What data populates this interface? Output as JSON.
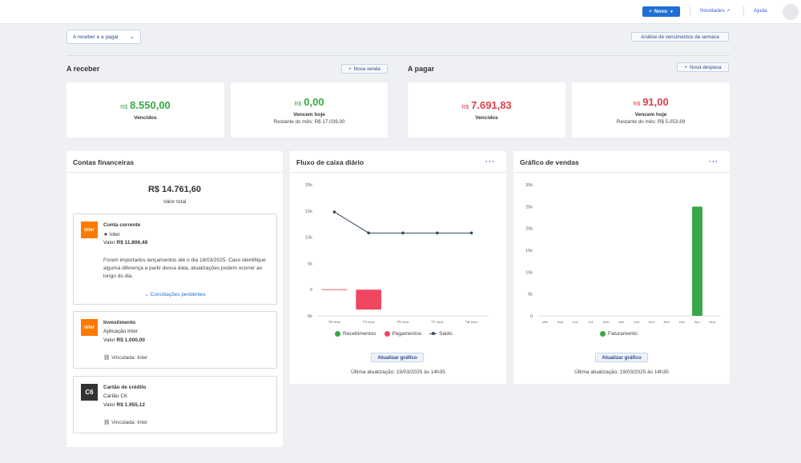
{
  "topbar": {
    "novo_label": "Novo",
    "novidades_label": "Novidades",
    "ajuda_label": "Ajuda"
  },
  "filter": {
    "label": "A receber e a pagar"
  },
  "analysis_button": "Análise de vencimentos da semana",
  "receber": {
    "title": "A receber",
    "button": "Nova venda",
    "vencidos": {
      "currency": "R$",
      "value": "8.550,00",
      "label": "Vencidos"
    },
    "hoje": {
      "currency": "R$",
      "value": "0,00",
      "label": "Vencem hoje",
      "sub": "Restante do mês: R$ 17.039,00"
    }
  },
  "pagar": {
    "title": "A pagar",
    "button": "Nova despesa",
    "vencidos": {
      "currency": "R$",
      "value": "7.691,83",
      "label": "Vencidos"
    },
    "hoje": {
      "currency": "R$",
      "value": "91,00",
      "label": "Vencem hoje",
      "sub": "Restante do mês: R$ 5.053,69"
    }
  },
  "contas": {
    "title": "Contas financeiras",
    "total": "R$ 14.761,60",
    "total_label": "Valor total",
    "accounts": [
      {
        "logo": "inter",
        "name": "Conta corrente",
        "bank": "Inter",
        "valor_label": "Valor",
        "valor": "R$ 11.806,48",
        "note": "Foram importados lançamentos até o dia 18/03/2025. Caso identifique alguma diferença a partir dessa data, atualizações podem ocorrer ao longo do dia.",
        "link": "Conciliações pendentes"
      },
      {
        "logo": "inter",
        "name": "Investimento",
        "bank": "Aplicação Inter",
        "valor_label": "Valor",
        "valor": "R$ 1.000,00",
        "linked": "Vinculada: Inter"
      },
      {
        "logo": "C6",
        "name": "Cartão de crédito",
        "bank": "Cartão C6",
        "valor_label": "Valor",
        "valor": "R$ 1.955,12",
        "linked": "Vinculada: Inter"
      }
    ]
  },
  "fluxo": {
    "title": "Fluxo de caixa diário",
    "update_button": "Atualizar gráfico",
    "last_update": "Última atualização: 19/03/2025 às 14h35",
    "legend": [
      "Recebimentos",
      "Pagamentos",
      "Saldo"
    ]
  },
  "vendas": {
    "title": "Gráfico de vendas",
    "update_button": "Atualizar gráfico",
    "last_update": "Última atualização: 19/03/2025 às 14h35",
    "legend": [
      "Faturamento"
    ]
  },
  "colors": {
    "accent": "#1f6fd6",
    "green": "#37a847",
    "red": "#e03e4a",
    "pink": "#f0465f",
    "line": "#34495e",
    "inter": "#ff7a00",
    "c6": "#333333"
  },
  "chart_data": [
    {
      "type": "bar",
      "title": "Fluxo de caixa diário",
      "categories": [
        "18 mar",
        "19 mar",
        "20 mar",
        "21 mar",
        "24 mar"
      ],
      "yticks": [
        "20k",
        "15k",
        "10k",
        "5k",
        "0",
        "-5k"
      ],
      "ylim": [
        -5000,
        20000
      ],
      "series": [
        {
          "name": "Recebimentos",
          "kind": "bar",
          "values": [
            0,
            0,
            0,
            0,
            0
          ]
        },
        {
          "name": "Pagamentos",
          "kind": "bar",
          "values": [
            0,
            -3800,
            0,
            0,
            0
          ]
        },
        {
          "name": "Saldo",
          "kind": "line",
          "values": [
            14800,
            10800,
            10800,
            10800,
            10800
          ]
        }
      ],
      "legend_position": "bottom"
    },
    {
      "type": "bar",
      "title": "Gráfico de vendas",
      "categories": [
        "abr",
        "mai",
        "jun",
        "jul",
        "ago",
        "set",
        "out",
        "nov",
        "dez",
        "jan",
        "fev",
        "mar"
      ],
      "yticks": [
        "30k",
        "25k",
        "20k",
        "15k",
        "10k",
        "5k",
        "0"
      ],
      "ylim": [
        0,
        30000
      ],
      "series": [
        {
          "name": "Faturamento",
          "values": [
            0,
            0,
            0,
            0,
            0,
            0,
            0,
            0,
            0,
            0,
            25000,
            0
          ]
        }
      ],
      "legend_position": "bottom"
    }
  ]
}
